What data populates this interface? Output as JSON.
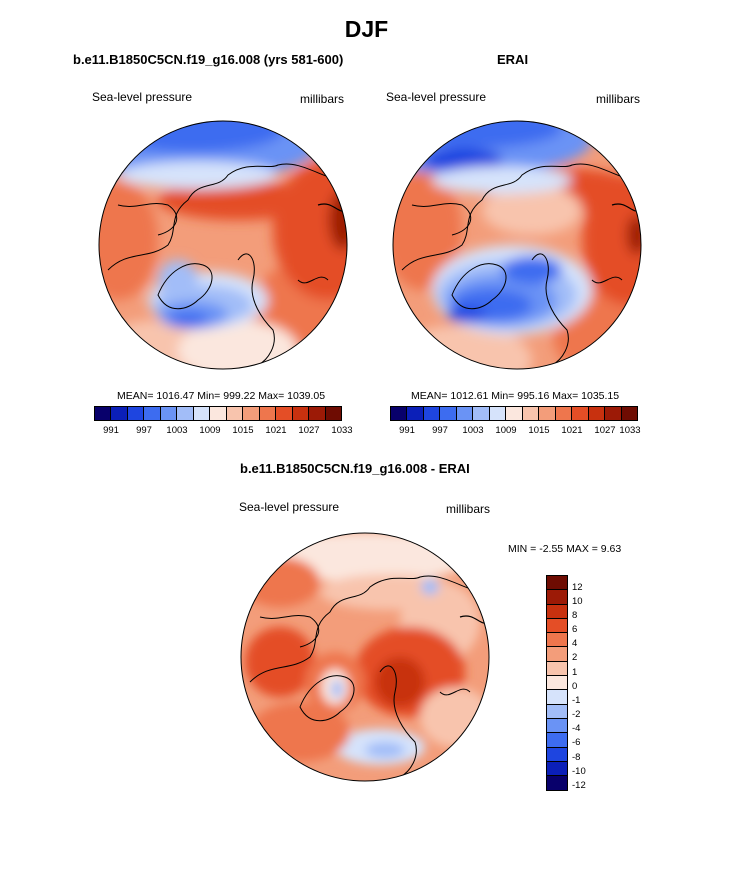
{
  "figure": {
    "title": "DJF",
    "palette": [
      "#08006b",
      "#0b1fb8",
      "#1e45e0",
      "#3d6cf0",
      "#6a93f5",
      "#a2bdf8",
      "#d6e3fb",
      "#fbe7de",
      "#f8c4ad",
      "#f39d7a",
      "#ee764d",
      "#e44e26",
      "#c8310f",
      "#9c1a06",
      "#6e0c02"
    ]
  },
  "panels": [
    {
      "title": "b.e11.B1850C5CN.f19_g16.008 (yrs 581-600)",
      "field_label": "Sea-level pressure",
      "units_label": "millibars",
      "stats": "MEAN= 1016.47  Min= 999.22  Max= 1039.05",
      "colorbar_ticks": [
        "991",
        "997",
        "1003",
        "1009",
        "1015",
        "1021",
        "1027",
        "1033"
      ]
    },
    {
      "title": "ERAI",
      "field_label": "Sea-level pressure",
      "units_label": "millibars",
      "stats": "MEAN= 1012.61  Min= 995.16  Max= 1035.15",
      "colorbar_ticks": [
        "991",
        "997",
        "1003",
        "1009",
        "1015",
        "1021",
        "1027",
        "1033"
      ]
    },
    {
      "title": "b.e11.B1850C5CN.f19_g16.008 - ERAI",
      "field_label": "Sea-level pressure",
      "units_label": "millibars",
      "stats": "MIN =  -2.55 MAX =   9.63",
      "colorbar_ticks": [
        "12",
        "10",
        "8",
        "6",
        "4",
        "2",
        "1",
        "0",
        "-1",
        "-2",
        "-4",
        "-6",
        "-8",
        "-10",
        "-12"
      ]
    }
  ]
}
